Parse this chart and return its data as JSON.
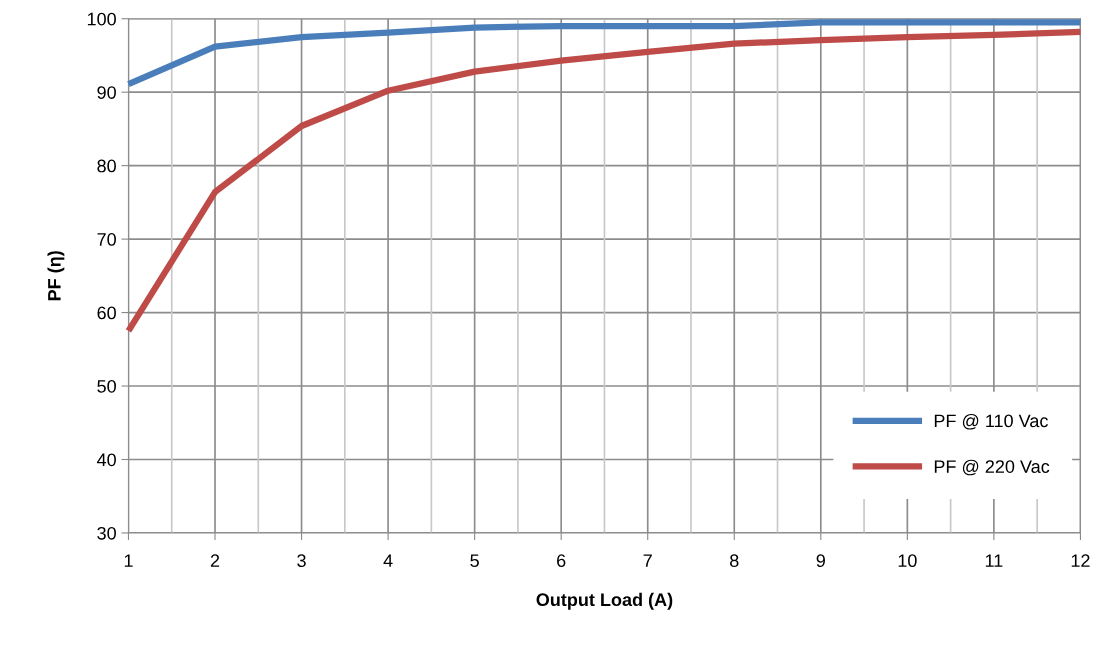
{
  "chart_data": {
    "type": "line",
    "xlabel": "Output Load (A)",
    "ylabel": "PF (η)",
    "x": [
      1,
      2,
      3,
      4,
      5,
      6,
      7,
      8,
      9,
      10,
      11,
      12
    ],
    "series": [
      {
        "name": "PF @ 110 Vac",
        "color": "#4a7ebb",
        "values": [
          91.1,
          96.2,
          97.5,
          98.1,
          98.8,
          99.0,
          99.0,
          99.0,
          99.5,
          99.5,
          99.5,
          99.5
        ]
      },
      {
        "name": "PF @ 220 Vac",
        "color": "#be4b48",
        "values": [
          57.5,
          76.4,
          85.4,
          90.2,
          92.8,
          94.3,
          95.5,
          96.6,
          97.1,
          97.5,
          97.8,
          98.2
        ]
      }
    ],
    "xlim": [
      1,
      12
    ],
    "ylim": [
      30,
      100
    ],
    "xticks": [
      1,
      {
        "value": 1.5,
        "label": null
      },
      2,
      {
        "value": 2.5,
        "label": null
      },
      3,
      {
        "value": 3.5,
        "label": null
      },
      4,
      {
        "value": 4.5,
        "label": null
      },
      5,
      {
        "value": 5.5,
        "label": null
      },
      6,
      {
        "value": 6.5,
        "label": null
      },
      7,
      {
        "value": 7.5,
        "label": null
      },
      8,
      {
        "value": 8.5,
        "label": null
      },
      9,
      {
        "value": 9.5,
        "label": null
      },
      10,
      {
        "value": 10.5,
        "label": null
      },
      11,
      {
        "value": 11.5,
        "label": null
      },
      12
    ],
    "yticks": [
      30,
      40,
      50,
      60,
      70,
      80,
      90,
      100
    ],
    "grid": true,
    "legend": "bottom right",
    "marker": "none",
    "line_style": "solid"
  }
}
